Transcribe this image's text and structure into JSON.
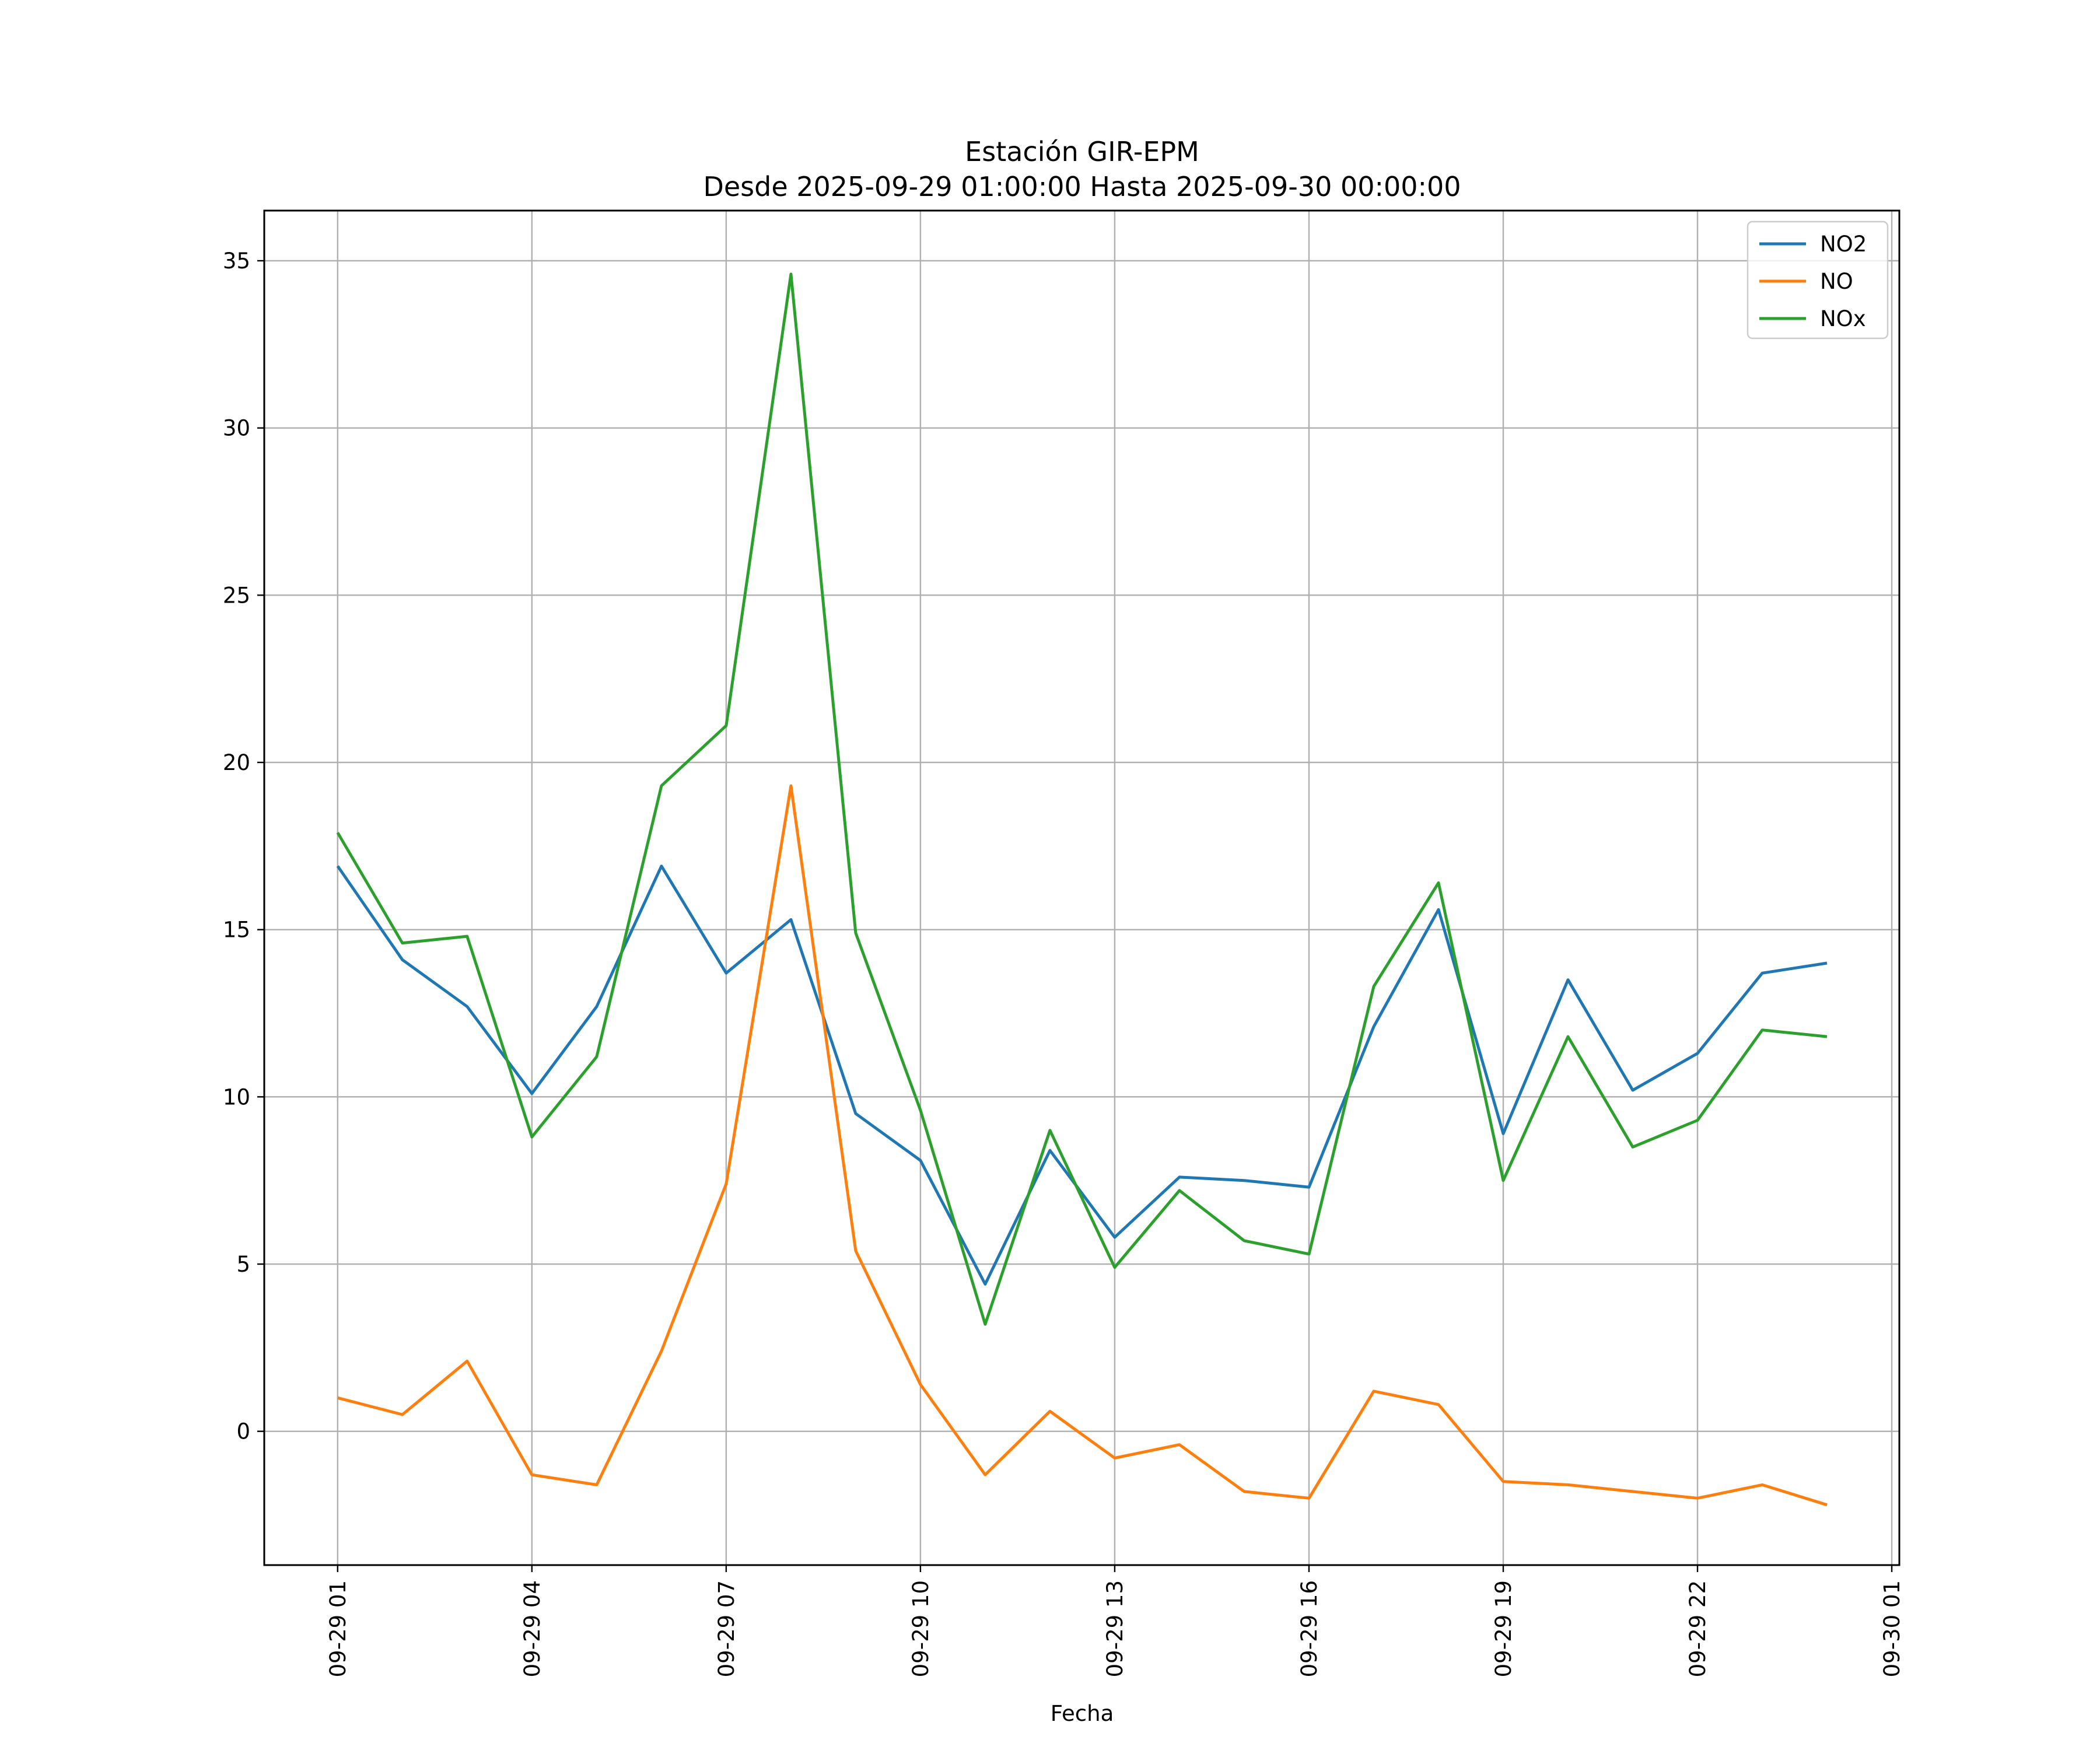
{
  "chart_data": {
    "type": "line",
    "title": "Estación GIR-EPM",
    "subtitle": "Desde 2025-09-29 01:00:00 Hasta 2025-09-30 00:00:00",
    "xlabel": "Fecha",
    "ylabel": "",
    "x": [
      "2025-09-29 01:00",
      "2025-09-29 02:00",
      "2025-09-29 03:00",
      "2025-09-29 04:00",
      "2025-09-29 05:00",
      "2025-09-29 06:00",
      "2025-09-29 07:00",
      "2025-09-29 08:00",
      "2025-09-29 09:00",
      "2025-09-29 10:00",
      "2025-09-29 11:00",
      "2025-09-29 12:00",
      "2025-09-29 13:00",
      "2025-09-29 14:00",
      "2025-09-29 15:00",
      "2025-09-29 16:00",
      "2025-09-29 17:00",
      "2025-09-29 18:00",
      "2025-09-29 19:00",
      "2025-09-29 20:00",
      "2025-09-29 21:00",
      "2025-09-29 22:00",
      "2025-09-29 23:00",
      "2025-09-30 00:00"
    ],
    "xlim": [
      "2025-09-28 23:52",
      "2025-09-30 01:07"
    ],
    "ylim": [
      -4.0,
      36.5
    ],
    "yticks": [
      0,
      5,
      10,
      15,
      20,
      25,
      30,
      35
    ],
    "ytick_labels": [
      "0",
      "5",
      "10",
      "15",
      "20",
      "25",
      "30",
      "35"
    ],
    "xticks": [
      "2025-09-29 01:00",
      "2025-09-29 04:00",
      "2025-09-29 07:00",
      "2025-09-29 10:00",
      "2025-09-29 13:00",
      "2025-09-29 16:00",
      "2025-09-29 19:00",
      "2025-09-29 22:00",
      "2025-09-30 01:00"
    ],
    "xtick_labels": [
      "09-29 01",
      "09-29 04",
      "09-29 07",
      "09-29 10",
      "09-29 13",
      "09-29 16",
      "09-29 19",
      "09-29 22",
      "09-30 01"
    ],
    "grid": true,
    "legend_position": "top-right",
    "series": [
      {
        "name": "NO2",
        "color": "#1f77b4",
        "values": [
          16.9,
          14.1,
          12.7,
          10.1,
          12.7,
          16.9,
          13.7,
          15.3,
          9.5,
          8.1,
          4.4,
          8.4,
          5.8,
          7.6,
          7.5,
          7.3,
          12.1,
          15.6,
          8.9,
          13.5,
          10.2,
          11.3,
          13.7,
          14.0
        ]
      },
      {
        "name": "NO",
        "color": "#ff7f0e",
        "values": [
          1.0,
          0.5,
          2.1,
          -1.3,
          -1.6,
          2.4,
          7.4,
          19.3,
          5.4,
          1.4,
          -1.3,
          0.6,
          -0.8,
          -0.4,
          -1.8,
          -2.0,
          1.2,
          0.8,
          -1.5,
          -1.6,
          -1.8,
          -2.0,
          -1.6,
          -2.2
        ]
      },
      {
        "name": "NOx",
        "color": "#2ca02c",
        "values": [
          17.9,
          14.6,
          14.8,
          8.8,
          11.2,
          19.3,
          21.1,
          34.6,
          14.9,
          9.6,
          3.2,
          9.0,
          4.9,
          7.2,
          5.7,
          5.3,
          13.3,
          16.4,
          7.5,
          11.8,
          8.5,
          9.3,
          12.0,
          11.8
        ]
      }
    ]
  }
}
